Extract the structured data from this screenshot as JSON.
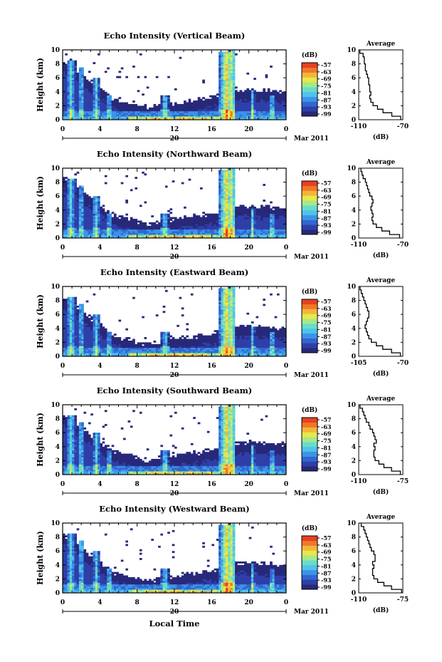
{
  "x_axis_label": "Local Time",
  "month_label": "Mar 2011",
  "colorbar": {
    "unit_label": "(dB)",
    "ticks": [
      "-57",
      "-63",
      "-69",
      "-75",
      "-81",
      "-87",
      "-93",
      "-99"
    ],
    "colors": [
      "#28287a",
      "#2f3fa8",
      "#3266d0",
      "#3c94e8",
      "#4fc3ea",
      "#69dcc8",
      "#a5e98a",
      "#e8e84a",
      "#f4b63a",
      "#f07828",
      "#e84020"
    ]
  },
  "chart_data": [
    {
      "type": "heatmap",
      "title": "Echo Intensity (Vertical Beam)",
      "ylabel": "Height (km)",
      "xlabel": "Local Time",
      "x_ticks": [
        "0",
        "4",
        "8",
        "12",
        "16",
        "20",
        "0"
      ],
      "y_ticks": [
        "0",
        "2",
        "4",
        "6",
        "8",
        "10"
      ],
      "xlim": [
        0,
        24
      ],
      "ylim": [
        0,
        10
      ],
      "date_marker": "20",
      "profile": {
        "title": "Average",
        "xlabel": "(dB)",
        "xlim": [
          -110,
          -70
        ],
        "x_ticks": [
          "-110",
          "-70"
        ],
        "y_ticks": [
          "0",
          "2",
          "4",
          "6",
          "8",
          "10"
        ],
        "heights": [
          0,
          0.5,
          1,
          1.5,
          2,
          2.5,
          3,
          3.5,
          4,
          4.5,
          5,
          5.5,
          6,
          6.5,
          7,
          7.5,
          8,
          8.5,
          9,
          9.5
        ],
        "values": [
          -72,
          -80,
          -88,
          -93,
          -97,
          -99,
          -100,
          -99,
          -100,
          -100,
          -101,
          -101,
          -102,
          -103,
          -104,
          -104,
          -105,
          -105,
          -106,
          -109
        ]
      }
    },
    {
      "type": "heatmap",
      "title": "Echo Intensity (Northward Beam)",
      "ylabel": "Height (km)",
      "xlabel": "Local Time",
      "x_ticks": [
        "0",
        "4",
        "8",
        "12",
        "16",
        "20",
        "0"
      ],
      "y_ticks": [
        "0",
        "2",
        "4",
        "6",
        "8",
        "10"
      ],
      "xlim": [
        0,
        24
      ],
      "ylim": [
        0,
        10
      ],
      "date_marker": "20",
      "profile": {
        "title": "Average",
        "xlabel": "(dB)",
        "xlim": [
          -110,
          -70
        ],
        "x_ticks": [
          "-110",
          "-70"
        ],
        "y_ticks": [
          "0",
          "2",
          "4",
          "6",
          "8",
          "10"
        ],
        "heights": [
          0,
          0.5,
          1,
          1.5,
          2,
          2.5,
          3,
          3.5,
          4,
          4.5,
          5,
          5.5,
          6,
          6.5,
          7,
          7.5,
          8,
          8.5,
          9,
          9.5
        ],
        "values": [
          -73,
          -82,
          -89,
          -94,
          -97,
          -98,
          -97,
          -98,
          -99,
          -98,
          -97,
          -98,
          -100,
          -101,
          -102,
          -103,
          -104,
          -106,
          -107,
          -108
        ]
      }
    },
    {
      "type": "heatmap",
      "title": "Echo Intensity (Eastward Beam)",
      "ylabel": "Height (km)",
      "xlabel": "Local Time",
      "x_ticks": [
        "0",
        "4",
        "8",
        "12",
        "16",
        "20",
        "0"
      ],
      "y_ticks": [
        "0",
        "2",
        "4",
        "6",
        "8",
        "10"
      ],
      "xlim": [
        0,
        24
      ],
      "ylim": [
        0,
        10
      ],
      "date_marker": "20",
      "profile": {
        "title": "Average",
        "xlabel": "(dB)",
        "xlim": [
          -105,
          -70
        ],
        "x_ticks": [
          "-105",
          "-70"
        ],
        "y_ticks": [
          "0",
          "2",
          "4",
          "6",
          "8",
          "10"
        ],
        "heights": [
          0,
          0.5,
          1,
          1.5,
          2,
          2.5,
          3,
          3.5,
          4,
          4.5,
          5,
          5.5,
          6,
          6.5,
          7,
          7.5,
          8,
          8.5,
          9,
          9.5
        ],
        "values": [
          -72,
          -79,
          -86,
          -91,
          -95,
          -97,
          -98,
          -99,
          -100,
          -99,
          -98,
          -97,
          -97,
          -98,
          -99,
          -100,
          -101,
          -102,
          -103,
          -104
        ]
      }
    },
    {
      "type": "heatmap",
      "title": "Echo Intensity (Southward Beam)",
      "ylabel": "Height (km)",
      "xlabel": "Local Time",
      "x_ticks": [
        "0",
        "4",
        "8",
        "12",
        "16",
        "20",
        "0"
      ],
      "y_ticks": [
        "0",
        "2",
        "4",
        "6",
        "8",
        "10"
      ],
      "xlim": [
        0,
        24
      ],
      "ylim": [
        0,
        10
      ],
      "date_marker": "20",
      "profile": {
        "title": "Average",
        "xlabel": "(dB)",
        "xlim": [
          -110,
          -75
        ],
        "x_ticks": [
          "-110",
          "-75"
        ],
        "y_ticks": [
          "0",
          "2",
          "4",
          "6",
          "8",
          "10"
        ],
        "heights": [
          0,
          0.5,
          1,
          1.5,
          2,
          2.5,
          3,
          3.5,
          4,
          4.5,
          5,
          5.5,
          6,
          6.5,
          7,
          7.5,
          8,
          8.5,
          9,
          9.5
        ],
        "values": [
          -77,
          -84,
          -90,
          -94,
          -97,
          -98,
          -98,
          -97,
          -98,
          -96,
          -97,
          -98,
          -99,
          -101,
          -102,
          -104,
          -105,
          -106,
          -107,
          -109
        ]
      }
    },
    {
      "type": "heatmap",
      "title": "Echo Intensity (Westward Beam)",
      "ylabel": "Height (km)",
      "xlabel": "Local Time",
      "x_ticks": [
        "0",
        "4",
        "8",
        "12",
        "16",
        "20",
        "0"
      ],
      "y_ticks": [
        "0",
        "2",
        "4",
        "6",
        "8",
        "10"
      ],
      "xlim": [
        0,
        24
      ],
      "ylim": [
        0,
        10
      ],
      "date_marker": "20",
      "profile": {
        "title": "Average",
        "xlabel": "(dB)",
        "xlim": [
          -110,
          -75
        ],
        "x_ticks": [
          "-110",
          "-75"
        ],
        "y_ticks": [
          "0",
          "2",
          "4",
          "6",
          "8",
          "10"
        ],
        "heights": [
          0,
          0.5,
          1,
          1.5,
          2,
          2.5,
          3,
          3.5,
          4,
          4.5,
          5,
          5.5,
          6,
          6.5,
          7,
          7.5,
          8,
          8.5,
          9,
          9.5
        ],
        "values": [
          -76,
          -84,
          -90,
          -95,
          -98,
          -99,
          -99,
          -98,
          -99,
          -97,
          -97,
          -98,
          -100,
          -101,
          -102,
          -103,
          -104,
          -105,
          -106,
          -108
        ]
      }
    }
  ]
}
